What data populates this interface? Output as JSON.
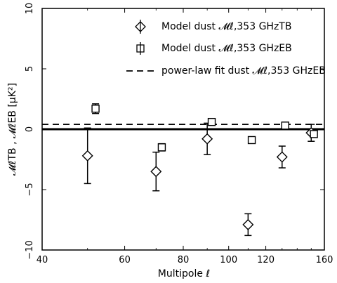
{
  "chart_data": {
    "type": "scatter",
    "xlabel": "Multipole ℓ",
    "ylabel": "𝓜ℓTB , 𝓜ℓEB [μK²]",
    "xscale": "log",
    "xlim": [
      40,
      160
    ],
    "ylim": [
      -10,
      10
    ],
    "xticks": [
      "40",
      "60",
      "80",
      "100",
      "120",
      "160"
    ],
    "yticks": [
      "−10",
      "−5",
      "0",
      "5",
      "10"
    ],
    "legend_position": "top-right",
    "legend": [
      {
        "marker": "diamond",
        "text": "Model dust 𝓜ℓ,353 GHzTB"
      },
      {
        "marker": "square",
        "text": "Model dust 𝓜ℓ,353 GHzEB"
      },
      {
        "marker": "dashed-line",
        "text": "power-law fit dust 𝓜ℓ,353 GHzEB"
      }
    ],
    "series": [
      {
        "name": "Model dust TB",
        "marker": "diamond",
        "points": [
          {
            "x": 50,
            "y": -2.2,
            "err": 2.3
          },
          {
            "x": 70,
            "y": -3.5,
            "err": 1.6
          },
          {
            "x": 90,
            "y": -0.8,
            "err": 1.3
          },
          {
            "x": 110,
            "y": -7.9,
            "err": 0.9
          },
          {
            "x": 130,
            "y": -2.3,
            "err": 0.9
          },
          {
            "x": 150,
            "y": -0.3,
            "err": 0.7
          }
        ]
      },
      {
        "name": "Model dust EB",
        "marker": "square",
        "points": [
          {
            "x": 52,
            "y": 1.7,
            "err": 0.4
          },
          {
            "x": 72,
            "y": -1.5,
            "err": 0.3
          },
          {
            "x": 92,
            "y": 0.6,
            "err": 0.25
          },
          {
            "x": 112,
            "y": -0.9,
            "err": 0.2
          },
          {
            "x": 132,
            "y": 0.3,
            "err": 0.2
          },
          {
            "x": 152,
            "y": -0.4,
            "err": 0.2
          }
        ]
      }
    ],
    "reference_lines": [
      {
        "name": "power-law fit dust EB",
        "style": "dashed",
        "y": 0.4
      },
      {
        "name": "zero",
        "style": "solid-thick",
        "y": 0
      }
    ]
  }
}
